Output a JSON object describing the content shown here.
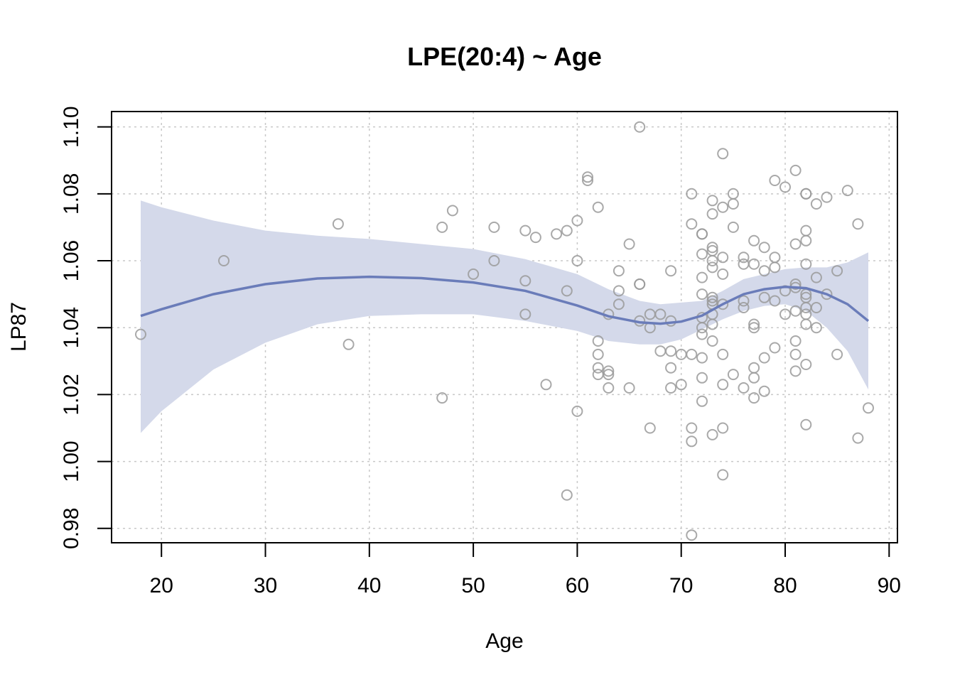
{
  "chart_data": {
    "type": "scatter",
    "title": "LPE(20:4) ~ Age",
    "xlabel": "Age",
    "ylabel": "LP87",
    "xlim": [
      15.2,
      90.8
    ],
    "ylim": [
      0.9757,
      1.1046
    ],
    "x_ticks": [
      20,
      30,
      40,
      50,
      60,
      70,
      80,
      90
    ],
    "y_ticks": [
      0.98,
      1.0,
      1.02,
      1.04,
      1.06,
      1.08,
      1.1
    ],
    "y_tick_labels": [
      "0.98",
      "1.00",
      "1.02",
      "1.04",
      "1.06",
      "1.08",
      "1.10"
    ],
    "grid": true,
    "colors": {
      "points": "#9a9a9a",
      "fit_line": "#6a7cb9",
      "confidence_band": "#d4d9ea",
      "grid": "#c8c8c8"
    },
    "points": [
      [
        18,
        1.038
      ],
      [
        26,
        1.06
      ],
      [
        37,
        1.071
      ],
      [
        38,
        1.035
      ],
      [
        47,
        1.07
      ],
      [
        47,
        1.019
      ],
      [
        48,
        1.075
      ],
      [
        50,
        1.056
      ],
      [
        52,
        1.07
      ],
      [
        52,
        1.06
      ],
      [
        55,
        1.069
      ],
      [
        55,
        1.054
      ],
      [
        55,
        1.044
      ],
      [
        56,
        1.067
      ],
      [
        57,
        1.023
      ],
      [
        58,
        1.068
      ],
      [
        59,
        1.069
      ],
      [
        59,
        1.051
      ],
      [
        59,
        0.99
      ],
      [
        60,
        1.072
      ],
      [
        60,
        1.06
      ],
      [
        60,
        1.015
      ],
      [
        61,
        1.085
      ],
      [
        61,
        1.084
      ],
      [
        62,
        1.076
      ],
      [
        62,
        1.036
      ],
      [
        62,
        1.032
      ],
      [
        62,
        1.028
      ],
      [
        62,
        1.026
      ],
      [
        63,
        1.044
      ],
      [
        63,
        1.027
      ],
      [
        63,
        1.026
      ],
      [
        63,
        1.022
      ],
      [
        64,
        1.057
      ],
      [
        64,
        1.051
      ],
      [
        64,
        1.047
      ],
      [
        65,
        1.065
      ],
      [
        65,
        1.022
      ],
      [
        66,
        1.1
      ],
      [
        66,
        1.053
      ],
      [
        66,
        1.053
      ],
      [
        66,
        1.042
      ],
      [
        67,
        1.044
      ],
      [
        67,
        1.04
      ],
      [
        67,
        1.01
      ],
      [
        68,
        1.044
      ],
      [
        68,
        1.033
      ],
      [
        69,
        1.057
      ],
      [
        69,
        1.042
      ],
      [
        69,
        1.033
      ],
      [
        69,
        1.028
      ],
      [
        69,
        1.022
      ],
      [
        70,
        1.032
      ],
      [
        70,
        1.023
      ],
      [
        71,
        1.08
      ],
      [
        71,
        1.071
      ],
      [
        71,
        1.032
      ],
      [
        71,
        1.01
      ],
      [
        71,
        1.006
      ],
      [
        71,
        0.978
      ],
      [
        72,
        1.068
      ],
      [
        72,
        1.068
      ],
      [
        72,
        1.062
      ],
      [
        72,
        1.055
      ],
      [
        72,
        1.05
      ],
      [
        72,
        1.043
      ],
      [
        72,
        1.04
      ],
      [
        72,
        1.038
      ],
      [
        72,
        1.031
      ],
      [
        72,
        1.025
      ],
      [
        72,
        1.018
      ],
      [
        73,
        1.078
      ],
      [
        73,
        1.074
      ],
      [
        73,
        1.064
      ],
      [
        73,
        1.063
      ],
      [
        73,
        1.06
      ],
      [
        73,
        1.058
      ],
      [
        73,
        1.049
      ],
      [
        73,
        1.048
      ],
      [
        73,
        1.047
      ],
      [
        73,
        1.044
      ],
      [
        73,
        1.041
      ],
      [
        73,
        1.036
      ],
      [
        73,
        1.008
      ],
      [
        74,
        1.092
      ],
      [
        74,
        1.076
      ],
      [
        74,
        1.061
      ],
      [
        74,
        1.056
      ],
      [
        74,
        1.047
      ],
      [
        74,
        1.032
      ],
      [
        74,
        1.023
      ],
      [
        74,
        1.01
      ],
      [
        74,
        0.996
      ],
      [
        75,
        1.08
      ],
      [
        75,
        1.077
      ],
      [
        75,
        1.07
      ],
      [
        75,
        1.026
      ],
      [
        76,
        1.061
      ],
      [
        76,
        1.059
      ],
      [
        76,
        1.048
      ],
      [
        76,
        1.046
      ],
      [
        76,
        1.022
      ],
      [
        77,
        1.066
      ],
      [
        77,
        1.059
      ],
      [
        77,
        1.041
      ],
      [
        77,
        1.04
      ],
      [
        77,
        1.028
      ],
      [
        77,
        1.025
      ],
      [
        77,
        1.019
      ],
      [
        78,
        1.064
      ],
      [
        78,
        1.057
      ],
      [
        78,
        1.049
      ],
      [
        78,
        1.031
      ],
      [
        78,
        1.021
      ],
      [
        79,
        1.084
      ],
      [
        79,
        1.061
      ],
      [
        79,
        1.058
      ],
      [
        79,
        1.048
      ],
      [
        79,
        1.034
      ],
      [
        80,
        1.082
      ],
      [
        80,
        1.051
      ],
      [
        80,
        1.044
      ],
      [
        81,
        1.087
      ],
      [
        81,
        1.065
      ],
      [
        81,
        1.053
      ],
      [
        81,
        1.052
      ],
      [
        81,
        1.045
      ],
      [
        81,
        1.036
      ],
      [
        81,
        1.032
      ],
      [
        81,
        1.027
      ],
      [
        82,
        1.08
      ],
      [
        82,
        1.08
      ],
      [
        82,
        1.069
      ],
      [
        82,
        1.066
      ],
      [
        82,
        1.059
      ],
      [
        82,
        1.05
      ],
      [
        82,
        1.049
      ],
      [
        82,
        1.046
      ],
      [
        82,
        1.044
      ],
      [
        82,
        1.041
      ],
      [
        82,
        1.029
      ],
      [
        82,
        1.011
      ],
      [
        83,
        1.077
      ],
      [
        83,
        1.055
      ],
      [
        83,
        1.046
      ],
      [
        83,
        1.04
      ],
      [
        84,
        1.079
      ],
      [
        84,
        1.05
      ],
      [
        85,
        1.057
      ],
      [
        85,
        1.032
      ],
      [
        86,
        1.081
      ],
      [
        87,
        1.071
      ],
      [
        87,
        1.007
      ],
      [
        88,
        1.016
      ]
    ],
    "fit": {
      "x": [
        18,
        20,
        25,
        30,
        35,
        40,
        45,
        50,
        55,
        60,
        63,
        66,
        68,
        70,
        72,
        74,
        76,
        78,
        80,
        82,
        84,
        86,
        88
      ],
      "y": [
        1.0435,
        1.0455,
        1.05,
        1.053,
        1.0547,
        1.0552,
        1.0548,
        1.0535,
        1.051,
        1.0466,
        1.0434,
        1.0416,
        1.0412,
        1.0418,
        1.0436,
        1.047,
        1.05,
        1.0515,
        1.0522,
        1.0518,
        1.05,
        1.047,
        1.042
      ],
      "upper": [
        1.078,
        1.076,
        1.072,
        1.069,
        1.0675,
        1.0665,
        1.065,
        1.0635,
        1.0605,
        1.056,
        1.0515,
        1.048,
        1.047,
        1.0475,
        1.048,
        1.051,
        1.0545,
        1.056,
        1.0575,
        1.058,
        1.058,
        1.0595,
        1.0625
      ],
      "lower": [
        1.0085,
        1.015,
        1.0275,
        1.0355,
        1.041,
        1.0435,
        1.044,
        1.044,
        1.042,
        1.039,
        1.036,
        1.035,
        1.035,
        1.0365,
        1.0395,
        1.0425,
        1.045,
        1.0465,
        1.047,
        1.045,
        1.04,
        1.033,
        1.0215
      ]
    }
  }
}
